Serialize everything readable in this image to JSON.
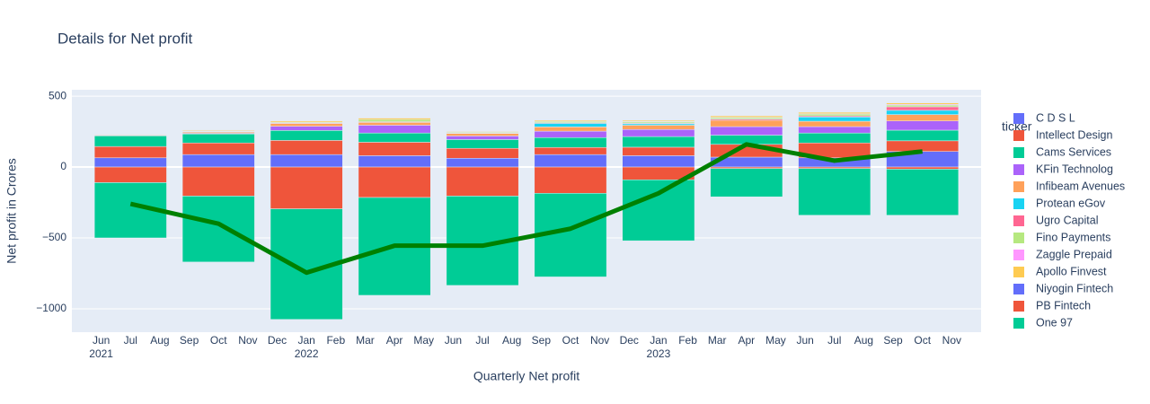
{
  "chart_data": {
    "type": "bar",
    "barmode": "relative",
    "title": "Details for Net profit",
    "x_label": "Quarterly Net profit",
    "y_label": "Net profit in Crores",
    "legend_title": "ticker",
    "x": [
      "2021-07",
      "2021-10",
      "2022-01",
      "2022-04",
      "2022-07",
      "2022-10",
      "2023-01",
      "2023-04",
      "2023-07",
      "2023-10"
    ],
    "series": [
      {
        "name": "C D S L",
        "color": "#636efa",
        "values": [
          65,
          88,
          88,
          80,
          62,
          88,
          80,
          70,
          65,
          110
        ]
      },
      {
        "name": "Intellect Design",
        "color": "#EF553B",
        "values": [
          80,
          82,
          100,
          95,
          70,
          50,
          60,
          90,
          105,
          75
        ]
      },
      {
        "name": "Cams Services",
        "color": "#00cc96",
        "values": [
          75,
          63,
          70,
          65,
          62,
          70,
          75,
          65,
          70,
          75
        ]
      },
      {
        "name": "KFin Technolog",
        "color": "#ab63fa",
        "values": [
          0,
          5,
          30,
          55,
          25,
          45,
          50,
          60,
          45,
          65
        ]
      },
      {
        "name": "Infibeam Avenues",
        "color": "#FFA15A",
        "values": [
          5,
          8,
          18,
          20,
          18,
          30,
          30,
          45,
          38,
          45
        ]
      },
      {
        "name": "Protean eGov",
        "color": "#19d3f3",
        "values": [
          0,
          3,
          0,
          0,
          0,
          25,
          10,
          0,
          30,
          30
        ]
      },
      {
        "name": "Ugro Capital",
        "color": "#FF6692",
        "values": [
          3,
          3,
          5,
          5,
          3,
          5,
          5,
          8,
          8,
          25
        ]
      },
      {
        "name": "Fino Payments",
        "color": "#B6E880",
        "values": [
          3,
          4,
          5,
          15,
          5,
          8,
          8,
          10,
          12,
          12
        ]
      },
      {
        "name": "Zaggle Prepaid",
        "color": "#FF97FF",
        "values": [
          0,
          0,
          0,
          0,
          0,
          0,
          3,
          3,
          3,
          5
        ]
      },
      {
        "name": "Apollo Finvest",
        "color": "#FECB52",
        "values": [
          3,
          5,
          8,
          10,
          5,
          8,
          8,
          10,
          10,
          10
        ]
      },
      {
        "name": "Niyogin Fintech",
        "color": "#636efa",
        "values": [
          0,
          0,
          0,
          0,
          0,
          0,
          0,
          0,
          0,
          0
        ]
      },
      {
        "name": "PB Fintech",
        "color": "#EF553B",
        "values": [
          -110,
          -205,
          -295,
          -215,
          -205,
          -185,
          -90,
          -10,
          -10,
          -15
        ]
      },
      {
        "name": "One 97",
        "color": "#00cc96",
        "values": [
          -390,
          -465,
          -780,
          -690,
          -630,
          -590,
          -430,
          -200,
          -330,
          -325
        ]
      }
    ],
    "line": {
      "color": "#008000",
      "values": [
        -260,
        -400,
        -745,
        -555,
        -555,
        -435,
        -185,
        160,
        45,
        110
      ]
    },
    "xlim": [
      "2021-05",
      "2023-12"
    ],
    "xticks": [
      {
        "value": "2021-06",
        "label": "Jun",
        "year": "2021"
      },
      {
        "value": "2021-07",
        "label": "Jul"
      },
      {
        "value": "2021-08",
        "label": "Aug"
      },
      {
        "value": "2021-09",
        "label": "Sep"
      },
      {
        "value": "2021-10",
        "label": "Oct"
      },
      {
        "value": "2021-11",
        "label": "Nov"
      },
      {
        "value": "2021-12",
        "label": "Dec"
      },
      {
        "value": "2022-01",
        "label": "Jan",
        "year": "2022"
      },
      {
        "value": "2022-02",
        "label": "Feb"
      },
      {
        "value": "2022-03",
        "label": "Mar"
      },
      {
        "value": "2022-04",
        "label": "Apr"
      },
      {
        "value": "2022-05",
        "label": "May"
      },
      {
        "value": "2022-06",
        "label": "Jun"
      },
      {
        "value": "2022-07",
        "label": "Jul"
      },
      {
        "value": "2022-08",
        "label": "Aug"
      },
      {
        "value": "2022-09",
        "label": "Sep"
      },
      {
        "value": "2022-10",
        "label": "Oct"
      },
      {
        "value": "2022-11",
        "label": "Nov"
      },
      {
        "value": "2022-12",
        "label": "Dec"
      },
      {
        "value": "2023-01",
        "label": "Jan",
        "year": "2023"
      },
      {
        "value": "2023-02",
        "label": "Feb"
      },
      {
        "value": "2023-03",
        "label": "Mar"
      },
      {
        "value": "2023-04",
        "label": "Apr"
      },
      {
        "value": "2023-05",
        "label": "May"
      },
      {
        "value": "2023-06",
        "label": "Jun"
      },
      {
        "value": "2023-07",
        "label": "Jul"
      },
      {
        "value": "2023-08",
        "label": "Aug"
      },
      {
        "value": "2023-09",
        "label": "Sep"
      },
      {
        "value": "2023-10",
        "label": "Oct"
      },
      {
        "value": "2023-11",
        "label": "Nov"
      }
    ],
    "ylim": [
      -1165,
      545
    ],
    "yticks": [
      {
        "value": -1000,
        "label": "−1000"
      },
      {
        "value": -500,
        "label": "−500"
      },
      0,
      500
    ],
    "grid": true
  }
}
